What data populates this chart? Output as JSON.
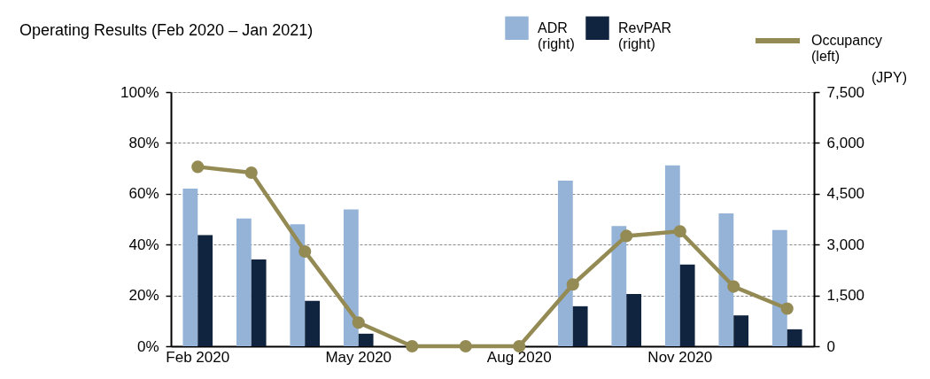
{
  "chart_data": {
    "type": "bar",
    "title": "Operating Results (Feb 2020 – Jan 2021)",
    "y2label": "(JPY)",
    "categories": [
      "Feb 2020",
      null,
      null,
      "May 2020",
      null,
      null,
      "Aug 2020",
      null,
      null,
      "Nov 2020",
      null,
      null
    ],
    "series": [
      {
        "name": "ADR (right)",
        "axis": "y2",
        "color": "#95b3d7",
        "values": [
          4650,
          3770,
          3600,
          4040,
          null,
          null,
          null,
          4890,
          3550,
          5340,
          3920,
          3430
        ]
      },
      {
        "name": "RevPAR (right)",
        "axis": "y2",
        "color": "#10243f",
        "values": [
          3280,
          2560,
          1340,
          370,
          null,
          null,
          null,
          1180,
          1540,
          2410,
          910,
          500
        ]
      },
      {
        "name": "Occupancy (left)",
        "type": "line",
        "axis": "y",
        "color": "#948a54",
        "values": [
          70.6,
          68.3,
          37.3,
          9.3,
          0,
          0,
          0,
          24.3,
          43.4,
          45.2,
          23.5,
          14.8
        ]
      }
    ],
    "ylim": [
      0,
      100
    ],
    "yticks": [
      {
        "value": 0,
        "label": "0%"
      },
      {
        "value": 20,
        "label": "20%"
      },
      {
        "value": 40,
        "label": "40%"
      },
      {
        "value": 60,
        "label": "60%"
      },
      {
        "value": 80,
        "label": "80%"
      },
      {
        "value": 100,
        "label": "100%"
      }
    ],
    "y2lim": [
      0,
      7500
    ],
    "y2ticks": [
      0,
      {
        "value": 1500,
        "label": "1,500"
      },
      {
        "value": 3000,
        "label": "3,000"
      },
      {
        "value": 4500,
        "label": "4,500"
      },
      {
        "value": 6000,
        "label": "6,000"
      },
      {
        "value": 7500,
        "label": "7,500"
      }
    ],
    "grid": "y",
    "legend": "top right",
    "marker": "circle",
    "line_style": "solid"
  }
}
